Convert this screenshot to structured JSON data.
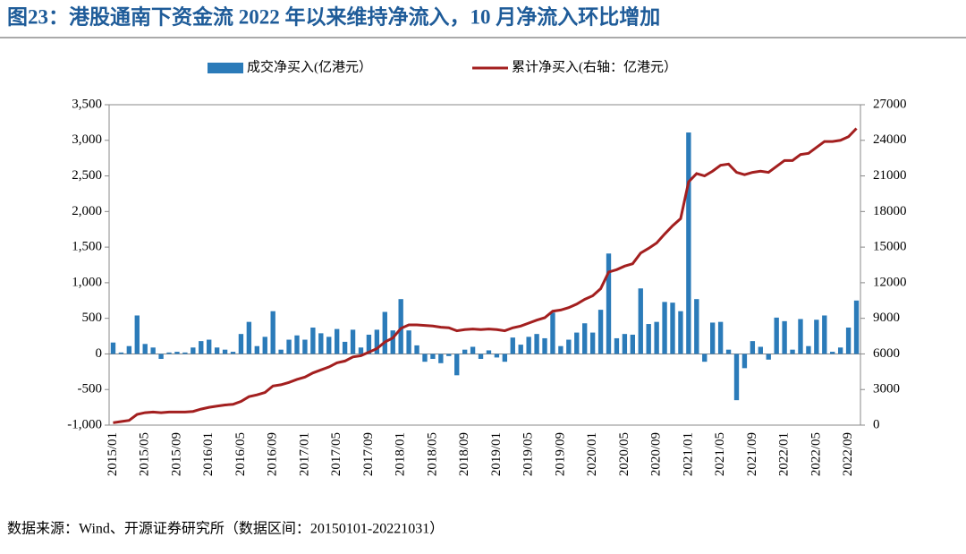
{
  "chart_data": {
    "type": "bar_line",
    "title": "图23：港股通南下资金流 2022 年以来维持净流入，10 月净流入环比增加",
    "source": "数据来源：Wind、开源证券研究所（数据区间：20150101-20221031）",
    "categories": [
      "2015/01",
      null,
      null,
      null,
      "2015/05",
      null,
      null,
      null,
      "2015/09",
      null,
      null,
      null,
      "2016/01",
      null,
      null,
      null,
      "2016/05",
      null,
      null,
      null,
      "2016/09",
      null,
      null,
      null,
      "2017/01",
      null,
      null,
      null,
      "2017/05",
      null,
      null,
      null,
      "2017/09",
      null,
      null,
      null,
      "2018/01",
      null,
      null,
      null,
      "2018/05",
      null,
      null,
      null,
      "2018/09",
      null,
      null,
      null,
      "2019/01",
      null,
      null,
      null,
      "2019/05",
      null,
      null,
      null,
      "2019/09",
      null,
      null,
      null,
      "2020/01",
      null,
      null,
      null,
      "2020/05",
      null,
      null,
      null,
      "2020/09",
      null,
      null,
      null,
      "2021/01",
      null,
      null,
      null,
      "2021/05",
      null,
      null,
      null,
      "2021/09",
      null,
      null,
      null,
      "2022/01",
      null,
      null,
      null,
      "2022/05",
      null,
      null,
      null,
      "2022/09",
      null
    ],
    "series": [
      {
        "name": "成交净买入(亿港元）",
        "type": "bar",
        "color": "#2b7bb9",
        "values": [
          160,
          20,
          110,
          540,
          140,
          90,
          -70,
          20,
          30,
          20,
          90,
          180,
          200,
          90,
          60,
          30,
          280,
          450,
          110,
          240,
          600,
          60,
          200,
          260,
          200,
          370,
          290,
          240,
          350,
          170,
          340,
          90,
          270,
          340,
          590,
          330,
          770,
          330,
          120,
          -110,
          -70,
          -130,
          -30,
          -300,
          60,
          100,
          -70,
          50,
          -50,
          -110,
          230,
          130,
          240,
          280,
          220,
          580,
          110,
          200,
          300,
          430,
          300,
          620,
          1410,
          220,
          280,
          270,
          920,
          420,
          450,
          730,
          720,
          600,
          3110,
          770,
          -110,
          440,
          450,
          60,
          -650,
          -200,
          180,
          100,
          -80,
          510,
          460,
          60,
          490,
          110,
          480,
          540,
          30,
          90,
          370,
          750
        ]
      },
      {
        "name": "累计净买入(右轴：亿港元）",
        "type": "line",
        "axis": "y2",
        "color": "#a31f1f",
        "values": [
          200,
          300,
          400,
          900,
          1050,
          1100,
          1050,
          1100,
          1100,
          1100,
          1150,
          1350,
          1500,
          1600,
          1700,
          1750,
          2000,
          2400,
          2550,
          2750,
          3300,
          3400,
          3600,
          3850,
          4050,
          4400,
          4650,
          4900,
          5250,
          5400,
          5750,
          5850,
          6150,
          6450,
          7000,
          7350,
          8150,
          8450,
          8450,
          8400,
          8350,
          8250,
          8200,
          7950,
          8050,
          8100,
          8050,
          8100,
          8050,
          7950,
          8200,
          8350,
          8600,
          8850,
          9050,
          9600,
          9700,
          9900,
          10200,
          10600,
          10900,
          11500,
          12900,
          13100,
          13400,
          13600,
          14500,
          14900,
          15350,
          16100,
          16800,
          17400,
          20500,
          21200,
          21000,
          21400,
          21900,
          22000,
          21300,
          21100,
          21300,
          21400,
          21300,
          21800,
          22300,
          22300,
          22800,
          22900,
          23400,
          23900,
          23900,
          24000,
          24300,
          25000
        ]
      }
    ],
    "ylim": [
      -1000,
      3500
    ],
    "yticks": [
      {
        "value": -1000,
        "label": "-1,000"
      },
      -500,
      0,
      500,
      {
        "value": 1000,
        "label": "1,000"
      },
      {
        "value": 1500,
        "label": "1,500"
      },
      {
        "value": 2000,
        "label": "2,000"
      },
      {
        "value": 2500,
        "label": "2,500"
      },
      {
        "value": 3000,
        "label": "3,000"
      },
      {
        "value": 3500,
        "label": "3,500"
      }
    ],
    "y2lim": [
      0,
      27000
    ],
    "y2ticks": [
      0,
      3000,
      6000,
      9000,
      12000,
      15000,
      18000,
      21000,
      24000,
      27000
    ],
    "grid": false,
    "legend": "top"
  }
}
